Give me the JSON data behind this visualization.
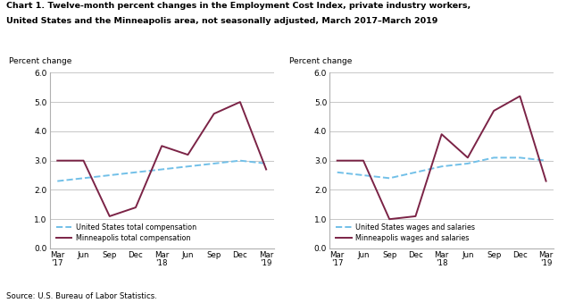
{
  "title_line1": "Chart 1. Twelve-month percent changes in the Employment Cost Index, private industry workers,",
  "title_line2": "United States and the Minneapolis area, not seasonally adjusted, March 2017–March 2019",
  "source": "Source: U.S. Bureau of Labor Statistics.",
  "x_labels": [
    "Mar\n'17",
    "Jun",
    "Sep",
    "Dec",
    "Mar\n'18",
    "Jun",
    "Sep",
    "Dec",
    "Mar\n'19"
  ],
  "ylabel": "Percent change",
  "ylim": [
    0.0,
    6.0
  ],
  "yticks": [
    0.0,
    1.0,
    2.0,
    3.0,
    4.0,
    5.0,
    6.0
  ],
  "left_us": [
    2.3,
    2.4,
    2.5,
    2.6,
    2.7,
    2.8,
    2.9,
    3.0,
    2.9
  ],
  "left_mpls": [
    3.0,
    3.0,
    1.1,
    1.4,
    3.5,
    3.2,
    4.6,
    5.0,
    2.7
  ],
  "right_us": [
    2.6,
    2.5,
    2.4,
    2.6,
    2.8,
    2.9,
    3.1,
    3.1,
    3.0
  ],
  "right_mpls": [
    3.0,
    3.0,
    1.0,
    1.1,
    3.9,
    3.1,
    4.7,
    5.2,
    2.3
  ],
  "us_color": "#72c0e8",
  "mpls_color": "#7b2346",
  "us_linestyle": "--",
  "mpls_linestyle": "-",
  "linewidth": 1.4,
  "left_legend1": "United States total compensation",
  "left_legend2": "Minneapolis total compensation",
  "right_legend1": "United States wages and salaries",
  "right_legend2": "Minneapolis wages and salaries",
  "background_color": "#ffffff",
  "grid_color": "#b0b0b0"
}
